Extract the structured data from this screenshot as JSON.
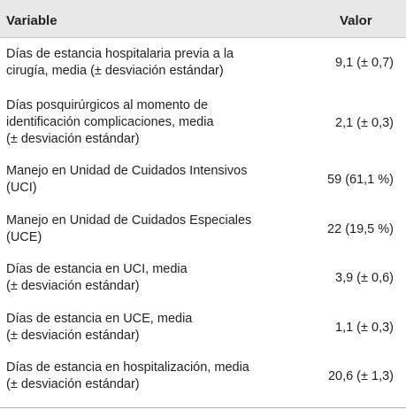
{
  "header": {
    "variable": "Variable",
    "valor": "Valor"
  },
  "rows": [
    {
      "lines": [
        "Días de estancia hospitalaria previa a la",
        "cirugía, media (± desviación estándar)"
      ],
      "value": "9,1 (± 0,7)"
    },
    {
      "lines": [
        "Días posquirúrgicos al momento de",
        "identificación complicaciones, media",
        "(± desviación estándar)"
      ],
      "value": "2,1 (± 0,3)"
    },
    {
      "lines": [
        "Manejo en Unidad de Cuidados Intensivos",
        "(UCI)"
      ],
      "value": "59 (61,1 %)"
    },
    {
      "lines": [
        "Manejo en Unidad de Cuidados Especiales",
        "(UCE)"
      ],
      "value": "22 (19,5 %)"
    },
    {
      "lines": [
        "Días de estancia en UCI, media",
        "(± desviación estándar)"
      ],
      "value": "3,9 (± 0,6)"
    },
    {
      "lines": [
        "Días de estancia en UCE, media",
        "(± desviación estándar)"
      ],
      "value": "1,1 (± 0,3)"
    },
    {
      "lines": [
        "Días de estancia en hospitalización, media",
        "(± desviación estándar)"
      ],
      "value": "20,6 (± 1,3)"
    }
  ]
}
